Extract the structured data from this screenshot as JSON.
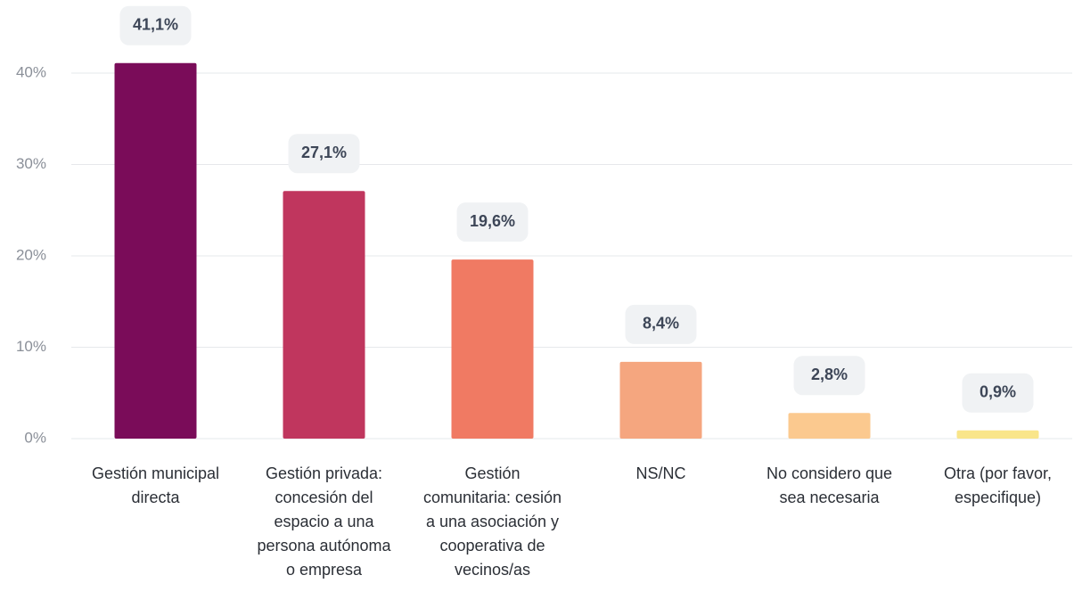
{
  "chart_data": {
    "type": "bar",
    "categories": [
      "Gestión municipal directa",
      "Gestión privada: concesión del espacio a una persona autónoma o empresa",
      "Gestión comunitaria: cesión a una asociación y cooperativa de vecinos/as",
      "NS/NC",
      "No considero que sea necesaria",
      "Otra (por favor, especifique)"
    ],
    "values": [
      41.1,
      27.1,
      19.6,
      8.4,
      2.8,
      0.9
    ],
    "value_labels": [
      "41,1%",
      "27,1%",
      "19,6%",
      "8,4%",
      "2,8%",
      "0,9%"
    ],
    "colors": [
      "#7a0c59",
      "#c0365e",
      "#f07a63",
      "#f5a67f",
      "#fbc98f",
      "#f9e58a"
    ],
    "ylim": [
      0,
      40
    ],
    "yticks": [
      {
        "value": 0,
        "label": "0%"
      },
      {
        "value": 10,
        "label": "10%"
      },
      {
        "value": 20,
        "label": "20%"
      },
      {
        "value": 30,
        "label": "30%"
      },
      {
        "value": 40,
        "label": "40%"
      }
    ],
    "grid": true
  }
}
